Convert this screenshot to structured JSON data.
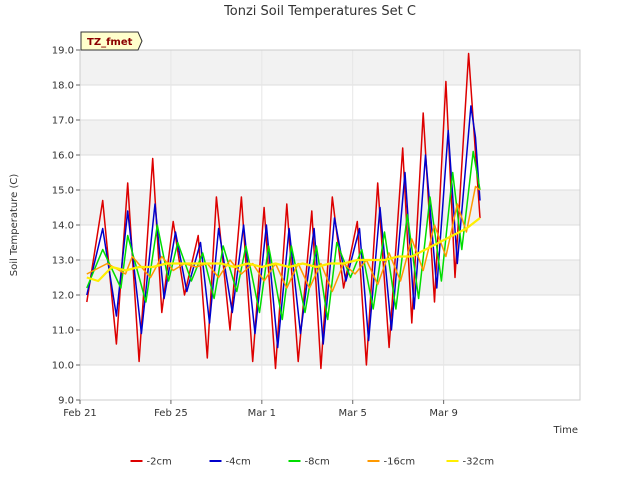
{
  "chart_data": {
    "type": "line",
    "title": "Tonzi Soil Temperatures Set C",
    "xlabel": "Time",
    "ylabel": "Soil Temperature (C)",
    "badge": "TZ_fmet",
    "ylim": [
      9.0,
      19.0
    ],
    "xlim": [
      0,
      22
    ],
    "yticks": [
      9.0,
      10.0,
      11.0,
      12.0,
      13.0,
      14.0,
      15.0,
      16.0,
      17.0,
      18.0,
      19.0
    ],
    "ytick_labels": [
      "9.0",
      "10.0",
      "11.0",
      "12.0",
      "13.0",
      "14.0",
      "15.0",
      "16.0",
      "17.0",
      "18.0",
      "19.0"
    ],
    "xticks": [
      0,
      4,
      8,
      12,
      16
    ],
    "xtick_labels": [
      "Feb 21",
      "Feb 25",
      "Mar 1",
      "Mar 5",
      "Mar 9"
    ],
    "grid": "horizontal bands",
    "legend_position": "bottom",
    "x_units": "days since Feb 21",
    "series": [
      {
        "name": "-2cm",
        "color": "#dd0000",
        "width": 1.5,
        "x": [
          0.3,
          1.0,
          1.6,
          2.1,
          2.6,
          3.2,
          3.6,
          4.1,
          4.6,
          5.2,
          5.6,
          6.0,
          6.6,
          7.1,
          7.6,
          8.1,
          8.6,
          9.1,
          9.6,
          10.2,
          10.6,
          11.1,
          11.6,
          12.2,
          12.6,
          13.1,
          13.6,
          14.2,
          14.6,
          15.1,
          15.6,
          16.1,
          16.5,
          17.1,
          17.3,
          17.6
        ],
        "y": [
          11.8,
          14.7,
          10.6,
          15.2,
          10.1,
          15.9,
          11.5,
          14.1,
          12.0,
          13.7,
          10.2,
          14.8,
          11.0,
          14.8,
          10.1,
          14.5,
          9.9,
          14.6,
          10.1,
          14.4,
          9.9,
          14.8,
          12.2,
          14.1,
          10.0,
          15.2,
          10.5,
          16.2,
          11.2,
          17.2,
          11.8,
          18.1,
          12.5,
          18.9,
          17.0,
          14.2
        ]
      },
      {
        "name": "-4cm",
        "color": "#0000cc",
        "width": 1.5,
        "x": [
          0.3,
          1.0,
          1.6,
          2.1,
          2.7,
          3.3,
          3.7,
          4.2,
          4.7,
          5.3,
          5.7,
          6.1,
          6.7,
          7.2,
          7.7,
          8.2,
          8.7,
          9.2,
          9.7,
          10.3,
          10.7,
          11.2,
          11.7,
          12.3,
          12.7,
          13.2,
          13.7,
          14.3,
          14.7,
          15.2,
          15.7,
          16.2,
          16.6,
          17.2,
          17.4,
          17.6
        ],
        "y": [
          12.0,
          13.9,
          11.4,
          14.4,
          10.9,
          14.6,
          11.9,
          13.8,
          12.1,
          13.5,
          11.2,
          13.9,
          11.5,
          14.0,
          10.9,
          14.0,
          10.5,
          13.9,
          10.9,
          13.9,
          10.6,
          14.2,
          12.4,
          13.9,
          10.7,
          14.5,
          11.0,
          15.5,
          11.6,
          16.0,
          12.2,
          16.7,
          12.9,
          17.4,
          16.5,
          14.7
        ]
      },
      {
        "name": "-8cm",
        "color": "#00dd00",
        "width": 1.5,
        "x": [
          0.3,
          1.0,
          1.8,
          2.1,
          2.9,
          3.4,
          3.9,
          4.3,
          4.9,
          5.4,
          5.9,
          6.3,
          6.9,
          7.3,
          7.9,
          8.3,
          8.9,
          9.3,
          9.9,
          10.4,
          10.9,
          11.3,
          11.9,
          12.4,
          12.9,
          13.4,
          13.9,
          14.4,
          14.9,
          15.4,
          15.9,
          16.4,
          16.8,
          17.3,
          17.6
        ],
        "y": [
          12.2,
          13.3,
          12.2,
          13.7,
          11.8,
          14.0,
          12.4,
          13.5,
          12.4,
          13.2,
          11.9,
          13.4,
          12.1,
          13.4,
          11.5,
          13.4,
          11.3,
          13.4,
          11.5,
          13.4,
          11.3,
          13.5,
          12.5,
          13.3,
          11.6,
          13.8,
          11.6,
          14.3,
          11.9,
          14.8,
          12.4,
          15.5,
          13.3,
          16.1,
          15.0
        ]
      },
      {
        "name": "-16cm",
        "color": "#ff9900",
        "width": 1.5,
        "x": [
          0.3,
          1.2,
          2.0,
          2.3,
          3.1,
          3.6,
          4.1,
          4.6,
          5.1,
          5.6,
          6.1,
          6.6,
          7.1,
          7.6,
          8.1,
          8.6,
          9.1,
          9.6,
          10.1,
          10.6,
          11.1,
          11.6,
          12.1,
          12.6,
          13.1,
          13.6,
          14.1,
          14.6,
          15.1,
          15.6,
          16.1,
          16.6,
          17.0,
          17.4,
          17.6
        ],
        "y": [
          12.6,
          12.9,
          12.6,
          13.1,
          12.5,
          13.1,
          12.7,
          12.9,
          12.8,
          12.9,
          12.5,
          13.0,
          12.6,
          12.9,
          12.4,
          12.9,
          12.2,
          12.9,
          12.2,
          12.9,
          12.1,
          12.9,
          12.6,
          13.0,
          12.3,
          13.2,
          12.4,
          13.6,
          12.7,
          14.0,
          13.1,
          14.6,
          13.8,
          15.1,
          15.0
        ]
      },
      {
        "name": "-32cm",
        "color": "#ffee00",
        "width": 2.2,
        "x": [
          0.3,
          0.8,
          1.4,
          2.0,
          2.6,
          3.2,
          3.8,
          4.4,
          5.0,
          5.6,
          6.2,
          6.8,
          7.4,
          8.0,
          8.6,
          9.2,
          9.8,
          10.4,
          11.0,
          11.6,
          12.2,
          12.8,
          13.4,
          14.0,
          14.6,
          15.2,
          15.8,
          16.4,
          17.0,
          17.6
        ],
        "y": [
          12.5,
          12.4,
          12.8,
          12.7,
          12.8,
          12.8,
          12.9,
          12.9,
          12.9,
          12.9,
          12.9,
          12.8,
          12.9,
          12.8,
          12.9,
          12.8,
          12.9,
          12.8,
          12.9,
          12.9,
          13.0,
          13.0,
          13.0,
          13.1,
          13.1,
          13.3,
          13.5,
          13.7,
          13.9,
          14.2
        ]
      }
    ]
  }
}
